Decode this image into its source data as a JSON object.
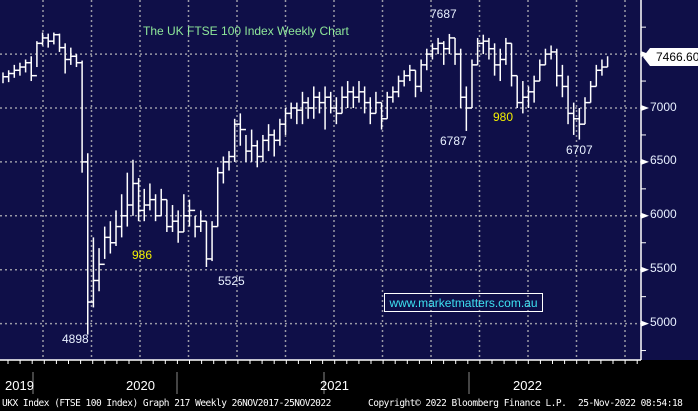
{
  "chart_data": {
    "type": "ohlc",
    "title": "The UK FTSE 100 Index Weekly Chart",
    "ylim": [
      4650,
      8000
    ],
    "y_ticks": [
      "5000",
      "5500",
      "6000",
      "6500",
      "7000"
    ],
    "grid": true,
    "x_labels": [
      "2019",
      "2020",
      "2021",
      "2022"
    ],
    "last_price": "7466.60",
    "bars_hlc": [
      [
        7330,
        7230,
        7290
      ],
      [
        7350,
        7240,
        7320
      ],
      [
        7400,
        7280,
        7350
      ],
      [
        7420,
        7300,
        7380
      ],
      [
        7450,
        7330,
        7420
      ],
      [
        7480,
        7250,
        7300
      ],
      [
        7620,
        7380,
        7600
      ],
      [
        7700,
        7580,
        7650
      ],
      [
        7690,
        7560,
        7620
      ],
      [
        7700,
        7590,
        7680
      ],
      [
        7690,
        7520,
        7560
      ],
      [
        7600,
        7320,
        7450
      ],
      [
        7560,
        7400,
        7480
      ],
      [
        7500,
        7380,
        7420
      ],
      [
        7440,
        6400,
        6500
      ],
      [
        6580,
        4898,
        5200
      ],
      [
        5800,
        5150,
        5400
      ],
      [
        5700,
        5300,
        5550
      ],
      [
        5900,
        5600,
        5800
      ],
      [
        5950,
        5650,
        5750
      ],
      [
        6050,
        5720,
        5900
      ],
      [
        6200,
        5800,
        6000
      ],
      [
        6400,
        5900,
        6100
      ],
      [
        6520,
        6000,
        6300
      ],
      [
        6350,
        5950,
        6050
      ],
      [
        6250,
        5950,
        6100
      ],
      [
        6300,
        6050,
        6150
      ],
      [
        6200,
        5950,
        6000
      ],
      [
        6250,
        6000,
        6150
      ],
      [
        6150,
        5850,
        5900
      ],
      [
        6100,
        5850,
        5950
      ],
      [
        6050,
        5750,
        5850
      ],
      [
        6200,
        5850,
        6000
      ],
      [
        6150,
        5900,
        6050
      ],
      [
        6000,
        5800,
        5900
      ],
      [
        6050,
        5850,
        5950
      ],
      [
        5950,
        5525,
        5600
      ],
      [
        5950,
        5580,
        5900
      ],
      [
        6450,
        5900,
        6400
      ],
      [
        6550,
        6300,
        6500
      ],
      [
        6600,
        6420,
        6550
      ],
      [
        6900,
        6500,
        6850
      ],
      [
        6950,
        6650,
        6800
      ],
      [
        6750,
        6500,
        6600
      ],
      [
        6800,
        6500,
        6650
      ],
      [
        6700,
        6450,
        6550
      ],
      [
        6750,
        6500,
        6700
      ],
      [
        6850,
        6600,
        6750
      ],
      [
        6800,
        6550,
        6700
      ],
      [
        6900,
        6650,
        6850
      ],
      [
        7000,
        6750,
        6950
      ],
      [
        7050,
        6900,
        7000
      ],
      [
        7050,
        6850,
        6980
      ],
      [
        7150,
        6850,
        7050
      ],
      [
        7100,
        6900,
        7000
      ],
      [
        7200,
        6900,
        7100
      ],
      [
        7150,
        6950,
        7050
      ],
      [
        7200,
        6800,
        7100
      ],
      [
        7150,
        6950,
        7000
      ],
      [
        7100,
        6850,
        6950
      ],
      [
        7200,
        6950,
        7100
      ],
      [
        7250,
        7000,
        7150
      ],
      [
        7200,
        7000,
        7100
      ],
      [
        7250,
        7050,
        7150
      ],
      [
        7200,
        6950,
        7050
      ],
      [
        7100,
        6850,
        6950
      ],
      [
        7150,
        6950,
        7050
      ],
      [
        7050,
        6800,
        6900
      ],
      [
        7150,
        6900,
        7100
      ],
      [
        7200,
        7050,
        7150
      ],
      [
        7300,
        7100,
        7250
      ],
      [
        7350,
        7200,
        7300
      ],
      [
        7400,
        7250,
        7350
      ],
      [
        7350,
        7100,
        7200
      ],
      [
        7450,
        7150,
        7400
      ],
      [
        7550,
        7350,
        7500
      ],
      [
        7600,
        7450,
        7550
      ],
      [
        7650,
        7500,
        7600
      ],
      [
        7620,
        7400,
        7550
      ],
      [
        7687,
        7500,
        7650
      ],
      [
        7650,
        7400,
        7500
      ],
      [
        7550,
        7000,
        7100
      ],
      [
        7200,
        6787,
        7000
      ],
      [
        7450,
        7000,
        7400
      ],
      [
        7650,
        7400,
        7600
      ],
      [
        7680,
        7500,
        7620
      ],
      [
        7650,
        7450,
        7550
      ],
      [
        7600,
        7300,
        7400
      ],
      [
        7550,
        7250,
        7450
      ],
      [
        7650,
        7400,
        7600
      ],
      [
        7600,
        7200,
        7300
      ],
      [
        7300,
        7000,
        7050
      ],
      [
        7250,
        6950,
        7100
      ],
      [
        7200,
        7000,
        7150
      ],
      [
        7300,
        7050,
        7250
      ],
      [
        7450,
        7250,
        7400
      ],
      [
        7550,
        7400,
        7500
      ],
      [
        7580,
        7450,
        7520
      ],
      [
        7550,
        7200,
        7300
      ],
      [
        7400,
        7100,
        7200
      ],
      [
        7300,
        6850,
        6950
      ],
      [
        7050,
        6750,
        6900
      ],
      [
        7000,
        6707,
        6850
      ],
      [
        7100,
        6850,
        7050
      ],
      [
        7250,
        7050,
        7200
      ],
      [
        7400,
        7200,
        7350
      ],
      [
        7450,
        7300,
        7380
      ],
      [
        7480,
        7380,
        7466.6
      ]
    ],
    "annotations": {
      "high_2022": "7687",
      "low_mar2022": "6787",
      "days_980": "980",
      "low_oct2022": "6707",
      "days_986": "986",
      "low_oct2020": "5525",
      "low_mar2020": "4898"
    },
    "series_color": "#ffffff",
    "background": "#0f0f48"
  },
  "watermark_url": "www.marketmatters.com.au",
  "footer": {
    "left": "UKX Index (FTSE 100 Index) Graph 217  Weekly 26NOV2017-25NOV2022",
    "center": "Copyright© 2022 Bloomberg Finance L.P.",
    "right": "25-Nov-2022 08:54:18"
  }
}
